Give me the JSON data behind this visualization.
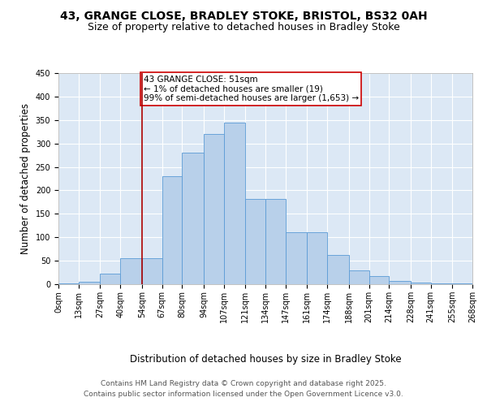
{
  "title1": "43, GRANGE CLOSE, BRADLEY STOKE, BRISTOL, BS32 0AH",
  "title2": "Size of property relative to detached houses in Bradley Stoke",
  "xlabel": "Distribution of detached houses by size in Bradley Stoke",
  "ylabel": "Number of detached properties",
  "bar_color": "#b8d0ea",
  "bar_edge_color": "#5b9bd5",
  "background_color": "#dce8f5",
  "grid_color": "#ffffff",
  "annotation_box_color": "#cc0000",
  "annotation_text": "43 GRANGE CLOSE: 51sqm\n← 1% of detached houses are smaller (19)\n99% of semi-detached houses are larger (1,653) →",
  "vline_x": 54,
  "vline_color": "#aa0000",
  "categories": [
    "0sqm",
    "13sqm",
    "27sqm",
    "40sqm",
    "54sqm",
    "67sqm",
    "80sqm",
    "94sqm",
    "107sqm",
    "121sqm",
    "134sqm",
    "147sqm",
    "161sqm",
    "174sqm",
    "188sqm",
    "201sqm",
    "214sqm",
    "228sqm",
    "241sqm",
    "255sqm",
    "268sqm"
  ],
  "bin_edges": [
    0,
    13,
    27,
    40,
    54,
    67,
    80,
    94,
    107,
    121,
    134,
    147,
    161,
    174,
    188,
    201,
    214,
    228,
    241,
    255,
    268
  ],
  "values": [
    2,
    6,
    22,
    55,
    55,
    230,
    280,
    320,
    345,
    182,
    182,
    110,
    110,
    62,
    30,
    18,
    7,
    3,
    2,
    1,
    0
  ],
  "ylim": [
    0,
    450
  ],
  "yticks": [
    0,
    50,
    100,
    150,
    200,
    250,
    300,
    350,
    400,
    450
  ],
  "footer1": "Contains HM Land Registry data © Crown copyright and database right 2025.",
  "footer2": "Contains public sector information licensed under the Open Government Licence v3.0.",
  "title_fontsize": 10,
  "subtitle_fontsize": 9,
  "annotation_fontsize": 7.5,
  "axis_label_fontsize": 8.5,
  "tick_fontsize": 7,
  "footer_fontsize": 6.5
}
